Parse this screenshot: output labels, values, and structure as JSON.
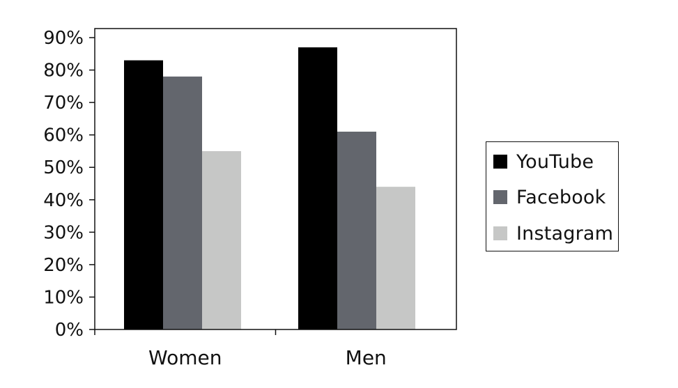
{
  "chart_data": {
    "type": "bar",
    "title": "",
    "xlabel": "",
    "ylabel": "",
    "categories": [
      "Women",
      "Men"
    ],
    "series": [
      {
        "name": "YouTube",
        "values": [
          83,
          87
        ],
        "color": "#000000"
      },
      {
        "name": "Facebook",
        "values": [
          78,
          61
        ],
        "color": "#63666d"
      },
      {
        "name": "Instagram",
        "values": [
          55,
          44
        ],
        "color": "#c6c7c6"
      }
    ],
    "ylim": [
      0,
      90
    ],
    "yticks": [
      "0%",
      "10%",
      "20%",
      "30%",
      "40%",
      "50%",
      "60%",
      "70%",
      "80%",
      "90%"
    ],
    "y_format": "percent",
    "grid": false,
    "legend_position": "right"
  },
  "legend": {
    "items": [
      {
        "label": "YouTube",
        "color": "#000000"
      },
      {
        "label": "Facebook",
        "color": "#63666d"
      },
      {
        "label": "Instagram",
        "color": "#c6c7c6"
      }
    ]
  }
}
